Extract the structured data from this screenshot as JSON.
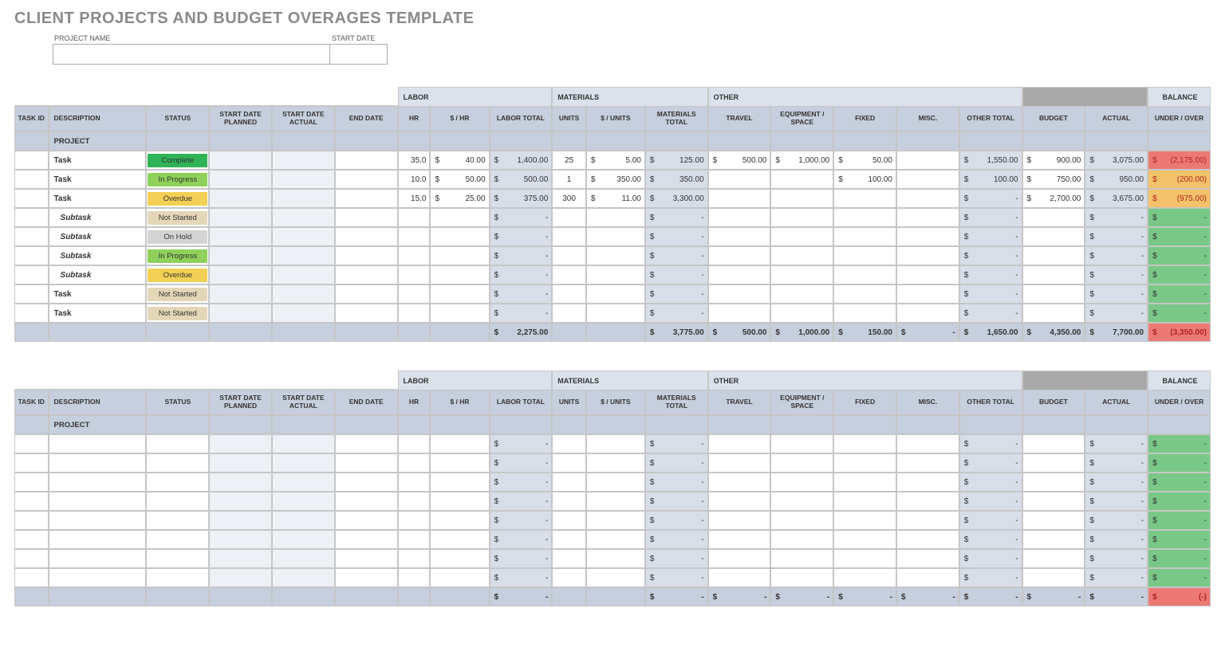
{
  "title": "CLIENT PROJECTS AND BUDGET OVERAGES TEMPLATE",
  "meta": {
    "project_name_label": "PROJECT NAME",
    "start_date_label": "START DATE",
    "project_name_value": "",
    "start_date_value": ""
  },
  "group_headers": {
    "labor": "LABOR",
    "materials": "MATERIALS",
    "other": "OTHER",
    "balance": "BALANCE"
  },
  "columns": {
    "task_id": "TASK ID",
    "description": "DESCRIPTION",
    "status": "STATUS",
    "start_planned": "START DATE PLANNED",
    "start_actual": "START DATE ACTUAL",
    "end_date": "END DATE",
    "hr": "HR",
    "rate": "$ / HR",
    "labor_total": "LABOR TOTAL",
    "units": "UNITS",
    "unit_rate": "$ / UNITS",
    "materials_total": "MATERIALS TOTAL",
    "travel": "TRAVEL",
    "equipment": "EQUIPMENT / SPACE",
    "fixed": "FIXED",
    "misc": "MISC.",
    "other_total": "OTHER TOTAL",
    "budget": "BUDGET",
    "actual": "ACTUAL",
    "under_over": "UNDER / OVER"
  },
  "project_row_label": "PROJECT",
  "status_colors": {
    "Complete": "#2fb457",
    "In Progress": "#8fd15a",
    "Overdue": "#f3cf55",
    "Not Started": "#e3d7b7",
    "On Hold": "#d4d4d4"
  },
  "balance_colors": {
    "neg_strong": "#ec7a74",
    "neg_mild": "#f4c26a",
    "zero_pos": "#79c887"
  },
  "table1": {
    "rows": [
      {
        "desc": "Task",
        "sub": false,
        "status": "Complete",
        "hr": "35.0",
        "rate": "40.00",
        "labor_total": "1,400.00",
        "units": "25",
        "unit_rate": "5.00",
        "mat_total": "125.00",
        "travel": "500.00",
        "equip": "1,000.00",
        "fixed": "50.00",
        "misc": "",
        "other_total": "1,550.00",
        "budget": "900.00",
        "actual": "3,075.00",
        "bal": "2,175.00",
        "bal_sign": "neg",
        "bal_color": "neg_strong"
      },
      {
        "desc": "Task",
        "sub": false,
        "status": "In Progress",
        "hr": "10.0",
        "rate": "50.00",
        "labor_total": "500.00",
        "units": "1",
        "unit_rate": "350.00",
        "mat_total": "350.00",
        "travel": "",
        "equip": "",
        "fixed": "100.00",
        "misc": "",
        "other_total": "100.00",
        "budget": "750.00",
        "actual": "950.00",
        "bal": "200.00",
        "bal_sign": "neg",
        "bal_color": "neg_mild"
      },
      {
        "desc": "Task",
        "sub": false,
        "status": "Overdue",
        "hr": "15.0",
        "rate": "25.00",
        "labor_total": "375.00",
        "units": "300",
        "unit_rate": "11.00",
        "mat_total": "3,300.00",
        "travel": "",
        "equip": "",
        "fixed": "",
        "misc": "",
        "other_total": "-",
        "budget": "2,700.00",
        "actual": "3,675.00",
        "bal": "975.00",
        "bal_sign": "neg",
        "bal_color": "neg_mild"
      },
      {
        "desc": "Subtask",
        "sub": true,
        "status": "Not Started",
        "hr": "",
        "rate": "",
        "labor_total": "-",
        "units": "",
        "unit_rate": "",
        "mat_total": "-",
        "travel": "",
        "equip": "",
        "fixed": "",
        "misc": "",
        "other_total": "-",
        "budget": "",
        "actual": "-",
        "bal": "-",
        "bal_sign": "pos",
        "bal_color": "zero_pos"
      },
      {
        "desc": "Subtask",
        "sub": true,
        "status": "On Hold",
        "hr": "",
        "rate": "",
        "labor_total": "-",
        "units": "",
        "unit_rate": "",
        "mat_total": "-",
        "travel": "",
        "equip": "",
        "fixed": "",
        "misc": "",
        "other_total": "-",
        "budget": "",
        "actual": "-",
        "bal": "-",
        "bal_sign": "pos",
        "bal_color": "zero_pos"
      },
      {
        "desc": "Subtask",
        "sub": true,
        "status": "In Progress",
        "hr": "",
        "rate": "",
        "labor_total": "-",
        "units": "",
        "unit_rate": "",
        "mat_total": "-",
        "travel": "",
        "equip": "",
        "fixed": "",
        "misc": "",
        "other_total": "-",
        "budget": "",
        "actual": "-",
        "bal": "-",
        "bal_sign": "pos",
        "bal_color": "zero_pos"
      },
      {
        "desc": "Subtask",
        "sub": true,
        "status": "Overdue",
        "hr": "",
        "rate": "",
        "labor_total": "-",
        "units": "",
        "unit_rate": "",
        "mat_total": "-",
        "travel": "",
        "equip": "",
        "fixed": "",
        "misc": "",
        "other_total": "-",
        "budget": "",
        "actual": "-",
        "bal": "-",
        "bal_sign": "pos",
        "bal_color": "zero_pos"
      },
      {
        "desc": "Task",
        "sub": false,
        "status": "Not Started",
        "hr": "",
        "rate": "",
        "labor_total": "-",
        "units": "",
        "unit_rate": "",
        "mat_total": "-",
        "travel": "",
        "equip": "",
        "fixed": "",
        "misc": "",
        "other_total": "-",
        "budget": "",
        "actual": "-",
        "bal": "-",
        "bal_sign": "pos",
        "bal_color": "zero_pos"
      },
      {
        "desc": "Task",
        "sub": false,
        "status": "Not Started",
        "hr": "",
        "rate": "",
        "labor_total": "-",
        "units": "",
        "unit_rate": "",
        "mat_total": "-",
        "travel": "",
        "equip": "",
        "fixed": "",
        "misc": "",
        "other_total": "-",
        "budget": "",
        "actual": "-",
        "bal": "-",
        "bal_sign": "pos",
        "bal_color": "zero_pos"
      }
    ],
    "totals": {
      "labor_total": "2,275.00",
      "mat_total": "3,775.00",
      "travel": "500.00",
      "equip": "1,000.00",
      "fixed": "150.00",
      "misc": "-",
      "other_total": "1,650.00",
      "budget": "4,350.00",
      "actual": "7,700.00",
      "bal": "3,350.00",
      "bal_sign": "neg",
      "bal_color": "neg_strong"
    }
  },
  "table2": {
    "row_count": 8,
    "totals": {
      "labor_total": "-",
      "mat_total": "-",
      "travel": "-",
      "equip": "-",
      "fixed": "-",
      "misc": "-",
      "other_total": "-",
      "budget": "-",
      "actual": "-",
      "bal": "-",
      "bal_sign": "neg",
      "bal_color": "neg_strong"
    }
  }
}
